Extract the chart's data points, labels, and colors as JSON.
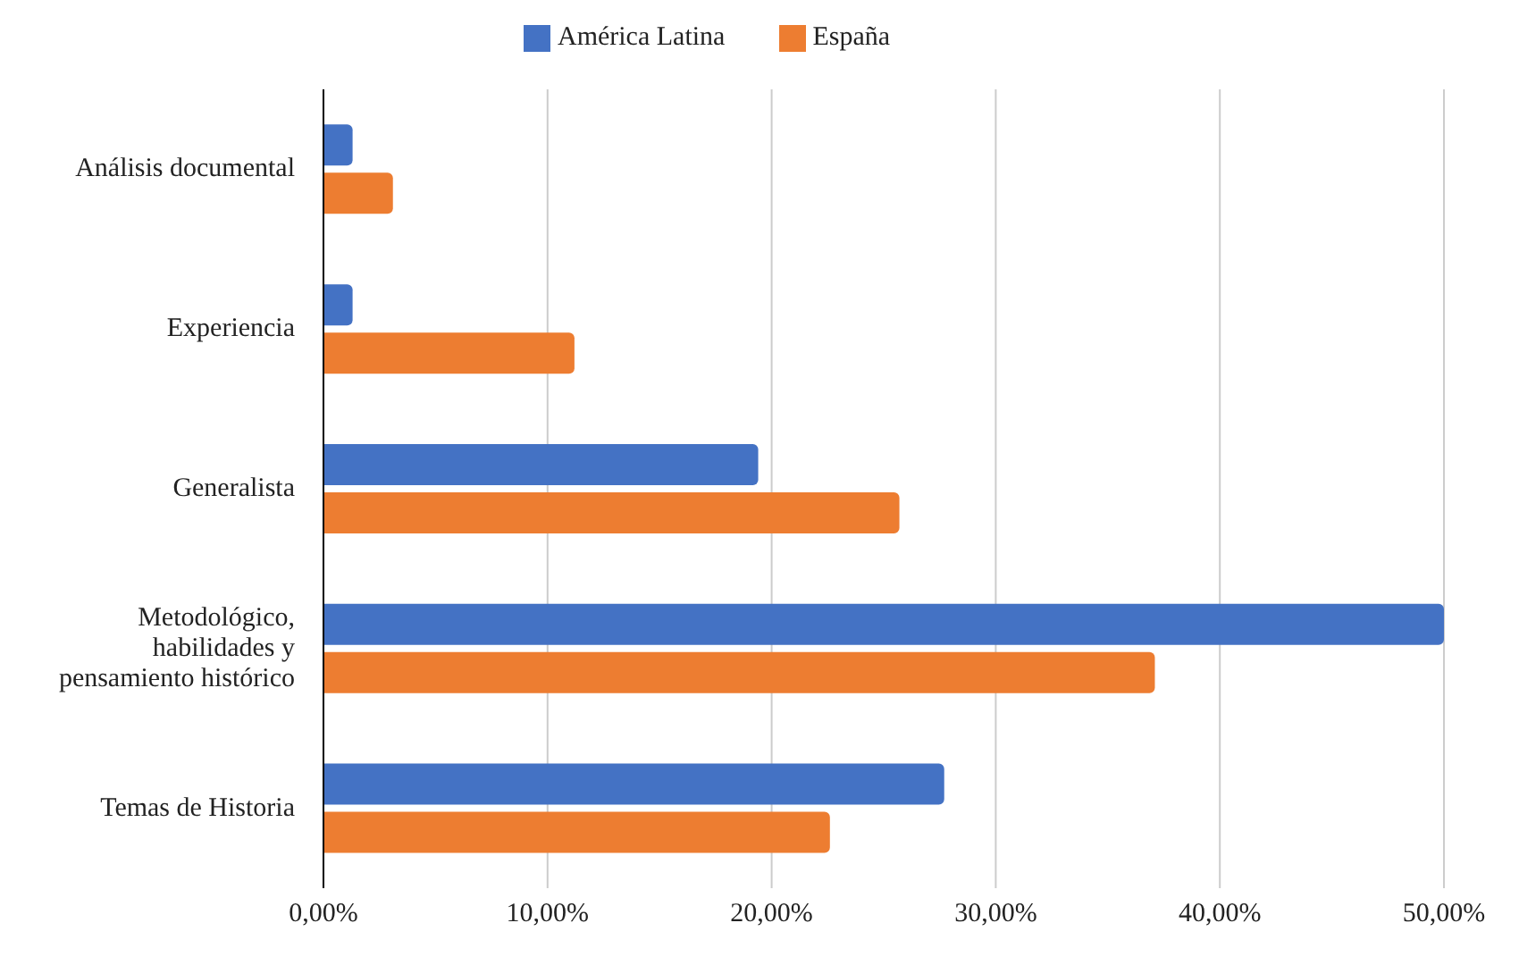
{
  "chart_data": {
    "type": "bar",
    "orientation": "horizontal",
    "categories": [
      "Análisis documental",
      "Experiencia",
      "Generalista",
      "Metodológico, habilidades y pensamiento histórico",
      "Temas de Historia"
    ],
    "series": [
      {
        "name": "América Latina",
        "color": "#4472c4",
        "values": [
          1.3,
          1.3,
          19.4,
          50,
          27.7
        ]
      },
      {
        "name": "España",
        "color": "#ed7d31",
        "values": [
          3.1,
          11.2,
          25.7,
          37.1,
          22.6
        ]
      }
    ],
    "xlim": [
      0,
      50
    ],
    "xticks": [
      {
        "value": 0,
        "label": "0,00%"
      },
      {
        "value": 10,
        "label": "10,00%"
      },
      {
        "value": 20,
        "label": "20,00%"
      },
      {
        "value": 30,
        "label": "30,00%"
      },
      {
        "value": 40,
        "label": "40,00%"
      },
      {
        "value": 50,
        "label": "50,00%"
      }
    ],
    "grid": "x",
    "legend": "top"
  }
}
